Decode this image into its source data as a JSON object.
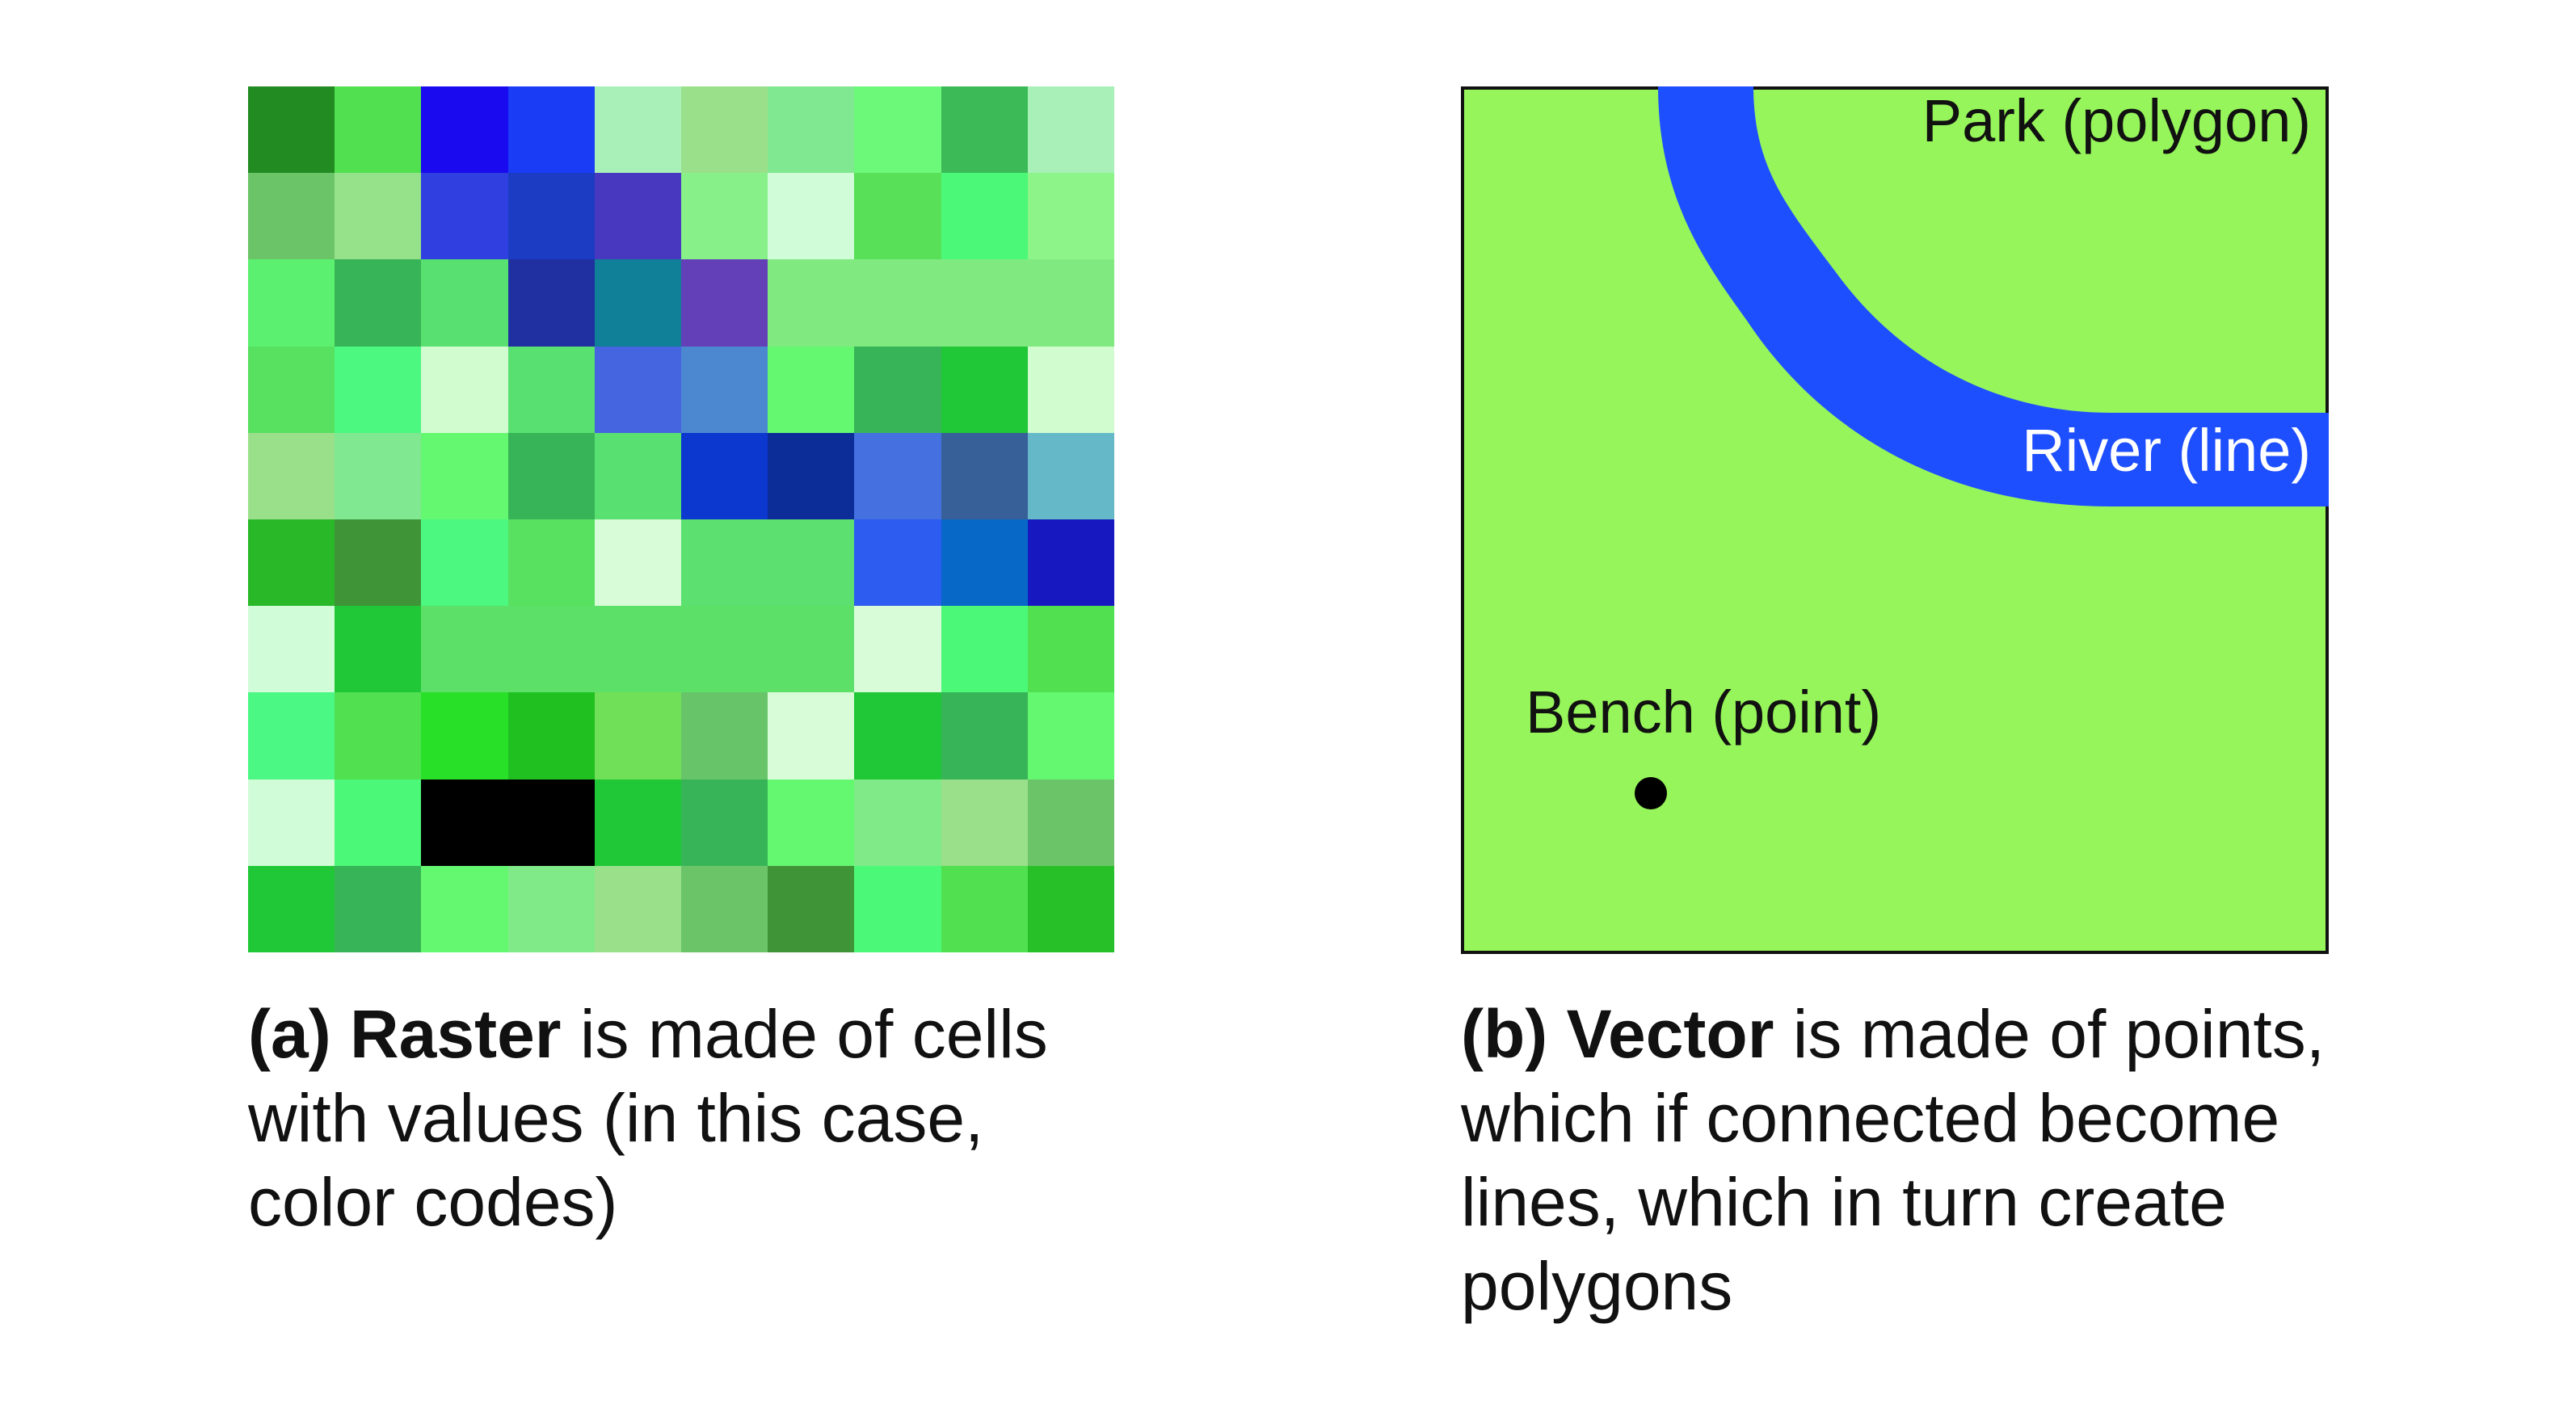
{
  "raster": {
    "colors": [
      [
        "#228b22",
        "#50e050",
        "#1a0af0",
        "#1a3cf5",
        "#a8f0b8",
        "#9ae08a",
        "#80e890",
        "#6cf878",
        "#3cba58",
        "#a8f0b8"
      ],
      [
        "#6cc468",
        "#96e28a",
        "#3040e0",
        "#1c3cc4",
        "#4838c0",
        "#88f088",
        "#d0fcd8",
        "#58e058",
        "#4cf878",
        "#8cf488"
      ],
      [
        "#5cf070",
        "#38b458",
        "#58e070",
        "#2030a0",
        "#108098",
        "#6440b8",
        "#80ea80",
        "#80ea80",
        "#80ea80",
        "#80ea80"
      ],
      [
        "#58e060",
        "#4cf880",
        "#d0fcd0",
        "#58e070",
        "#4464e0",
        "#4c88d0",
        "#64f870",
        "#38b458",
        "#20c838",
        "#d0fcd0"
      ],
      [
        "#9ae08a",
        "#80e890",
        "#64f870",
        "#38b458",
        "#58e070",
        "#0c38d0",
        "#0c2c98",
        "#4470e0",
        "#386098",
        "#64b8c8"
      ],
      [
        "#28b828",
        "#409438",
        "#4cf880",
        "#58e060",
        "#d8fcd8",
        "#5ce070",
        "#5ce070",
        "#2c5cf0",
        "#0868c8",
        "#1818c0"
      ],
      [
        "#d0fcd8",
        "#20c838",
        "#5ce068",
        "#5ce068",
        "#5ce068",
        "#5ce068",
        "#5ce068",
        "#d8fcd8",
        "#4cf878",
        "#50e050"
      ],
      [
        "#4cf884",
        "#50e050",
        "#28e028",
        "#20c020",
        "#70e058",
        "#68c468",
        "#d8fcd8",
        "#20c838",
        "#38b458",
        "#64f870"
      ],
      [
        "#d0fcd8",
        "#4cf878",
        "#000000",
        "#000000",
        "#20c838",
        "#38b458",
        "#64f870",
        "#80ea88",
        "#9ae08a",
        "#6cc468"
      ],
      [
        "#20c838",
        "#38b458",
        "#64f870",
        "#80ea88",
        "#9ae08a",
        "#6cc468",
        "#409438",
        "#4cf878",
        "#50e050",
        "#28c028"
      ]
    ]
  },
  "vector": {
    "park_color": "#96f55a",
    "river_color": "#1e4fff",
    "point_color": "#000000",
    "park_label": "Park (polygon)",
    "river_label": "River (line)",
    "bench_label": "Bench (point)"
  },
  "captions": {
    "a_prefix": "(a)",
    "a_bold": "Raster",
    "a_line1_rest": "is made of cells",
    "a_line2": "with values (in this case,",
    "a_line3": "color codes)",
    "b_prefix": "(b)",
    "b_bold": "Vector",
    "b_line1_rest": "is made of points,",
    "b_line2": "which if connected become",
    "b_line3": "lines, which in turn create",
    "b_line4": "polygons"
  }
}
